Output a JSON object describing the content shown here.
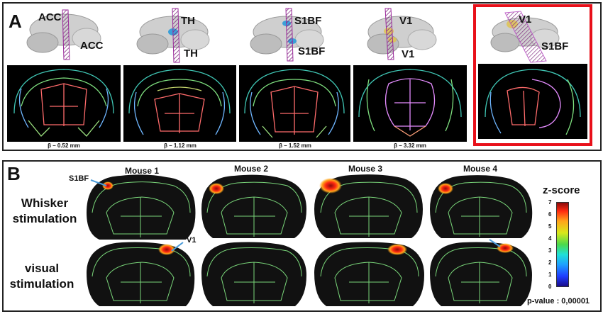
{
  "panel_a": {
    "letter": "A",
    "columns": [
      {
        "top_label": "ACC",
        "bottom_label": "ACC",
        "caption": "β – 0.52 mm",
        "plane_color": "#9b2a9b"
      },
      {
        "top_label": "TH",
        "bottom_label": "TH",
        "caption": "β – 1.12 mm",
        "plane_color": "#9b2a9b"
      },
      {
        "top_label": "S1BF",
        "bottom_label": "S1BF",
        "caption": "β – 1.52 mm",
        "plane_color": "#9b2a9b"
      },
      {
        "top_label": "V1",
        "bottom_label": "V1",
        "caption": "β – 3.32 mm",
        "plane_color": "#9b2a9b"
      },
      {
        "top_label": "V1",
        "bottom_label": "S1BF",
        "caption": "",
        "plane_color": "#b84cc4"
      }
    ],
    "highlight_color": "#e8101a"
  },
  "panel_b": {
    "letter": "B",
    "mice": [
      "Mouse 1",
      "Mouse 2",
      "Mouse 3",
      "Mouse 4"
    ],
    "row_labels": [
      "Whisker\nstimulation",
      "visual\nstimulation"
    ],
    "annot_s1bf": "S1BF",
    "annot_v1": "V1",
    "colorbar": {
      "title": "z-score",
      "ticks": [
        "7",
        "6",
        "5",
        "4",
        "3",
        "2",
        "1",
        "0"
      ],
      "min": 0,
      "max": 7
    },
    "pvalue": "p-value : 0,00001",
    "atlas_color": "#7fe07f"
  }
}
